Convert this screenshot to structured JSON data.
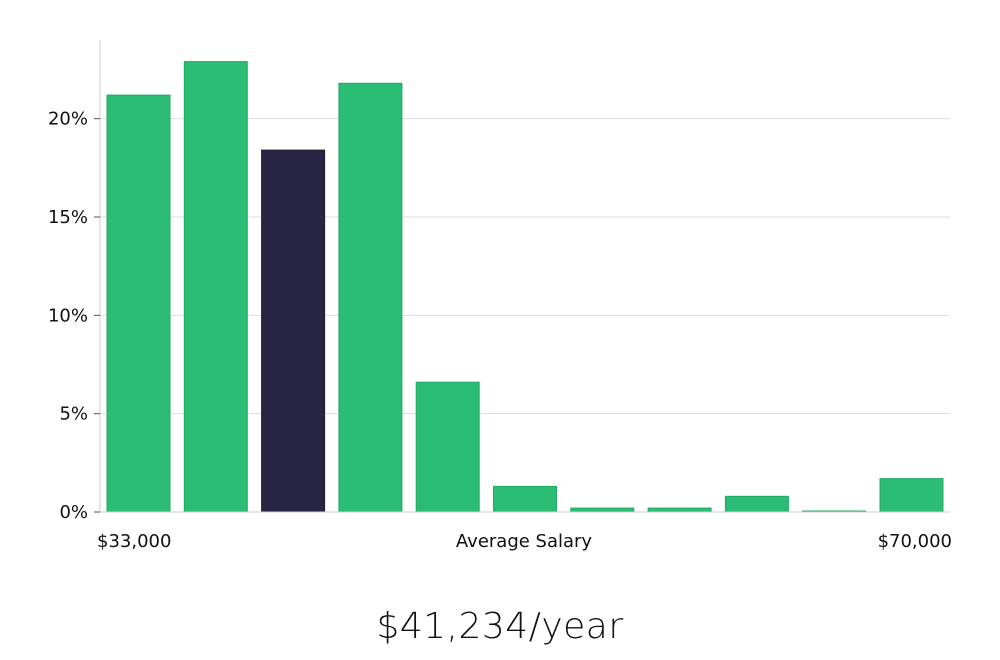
{
  "chart_data": {
    "type": "bar",
    "title": "",
    "xlabel": "Average Salary",
    "ylabel": "",
    "x_min_label": "$33,000",
    "x_max_label": "$70,000",
    "ylim": [
      0,
      24
    ],
    "y_ticks": [
      0,
      5,
      10,
      15,
      20
    ],
    "y_tick_labels": [
      "0%",
      "5%",
      "10%",
      "15%",
      "20%"
    ],
    "grid": true,
    "values": [
      21.2,
      22.9,
      18.4,
      21.8,
      6.6,
      1.3,
      0.2,
      0.2,
      0.8,
      0.05,
      1.7
    ],
    "highlight_index": 2,
    "colors": {
      "bar": "#2bbd74",
      "highlight": "#282443",
      "grid": "#dddddd",
      "axis": "#cccccc"
    }
  },
  "salary_text": "$41,234/year"
}
